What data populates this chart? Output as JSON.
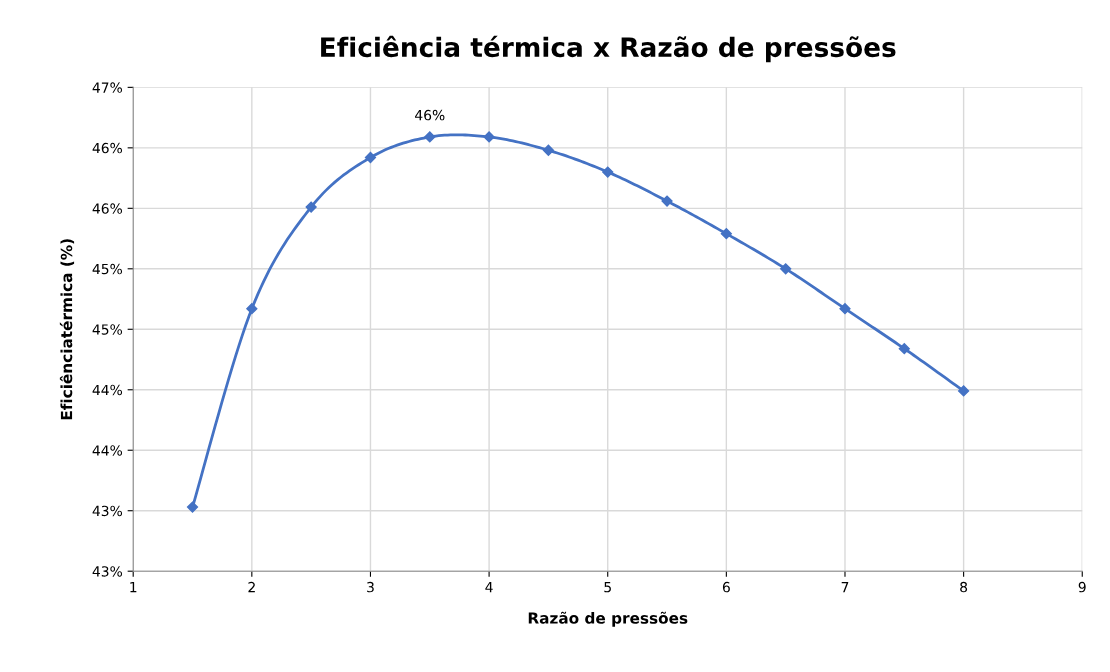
{
  "chart_data": {
    "type": "line",
    "title": "Eficiência térmica x Razão de pressões",
    "xlabel": "Razão de pressões",
    "ylabel": "Eficiênciatérmica (%)",
    "x": [
      1.5,
      2,
      2.5,
      3,
      3.5,
      4,
      4.5,
      5,
      5.5,
      6,
      6.5,
      7,
      7.5,
      8
    ],
    "series": [
      {
        "color": "#4472c4",
        "values": [
          43.03,
          44.67,
          45.51,
          45.92,
          46.09,
          46.09,
          45.98,
          45.8,
          45.56,
          45.29,
          45.0,
          44.67,
          44.34,
          43.99
        ],
        "value_labels": [
          null,
          null,
          null,
          null,
          "46%",
          null,
          null,
          null,
          null,
          null,
          null,
          null,
          null,
          null
        ]
      }
    ],
    "xlim": [
      1,
      9
    ],
    "xticks": [
      1,
      2,
      3,
      4,
      5,
      6,
      7,
      8,
      9
    ],
    "ylim": [
      42.5,
      46.5
    ],
    "yticks": [
      {
        "value": 42.5,
        "label": "43%"
      },
      {
        "value": 43,
        "label": "43%"
      },
      {
        "value": 43.5,
        "label": "44%"
      },
      {
        "value": 44,
        "label": "44%"
      },
      {
        "value": 44.5,
        "label": "45%"
      },
      {
        "value": 45,
        "label": "45%"
      },
      {
        "value": 45.5,
        "label": "46%"
      },
      {
        "value": 46,
        "label": "46%"
      },
      {
        "value": 46.5,
        "label": "47%"
      }
    ],
    "grid": true,
    "marker": "diamond",
    "line_style": "solid"
  }
}
